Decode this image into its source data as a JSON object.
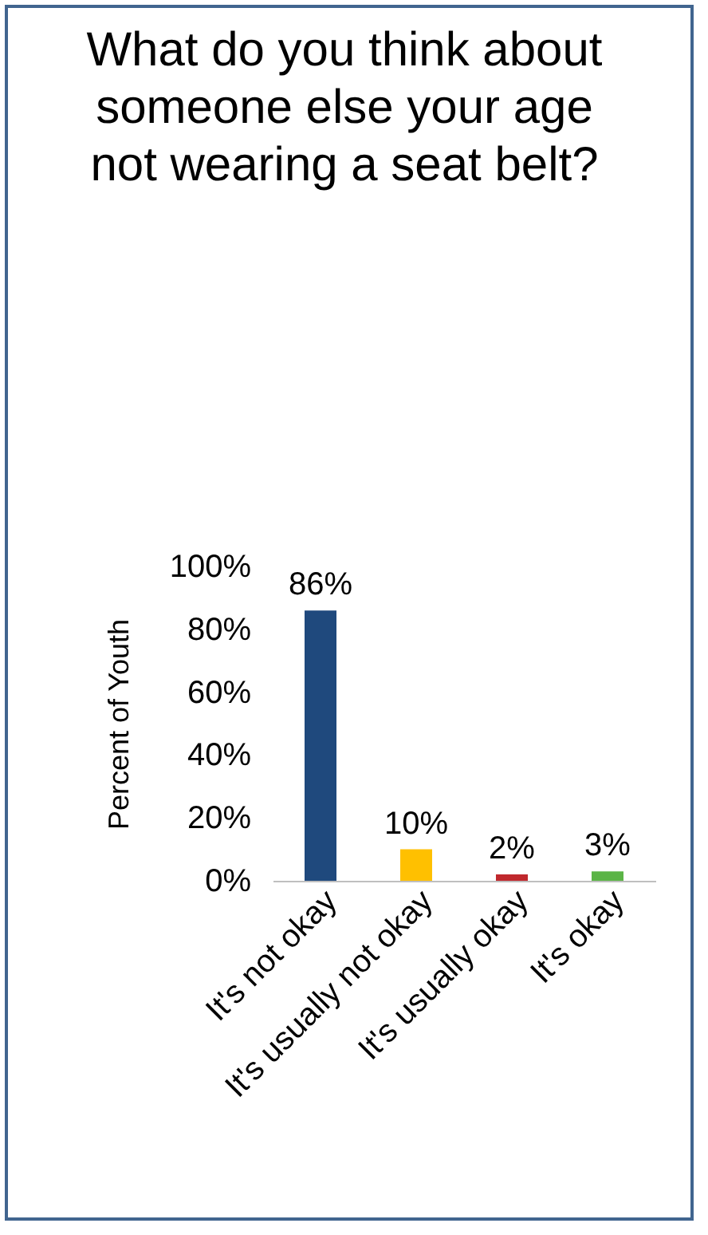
{
  "chart_data": {
    "type": "bar",
    "title": "What do you think about someone else your age not wearing a seat belt?",
    "ylabel": "Percent of Youth",
    "categories": [
      "It's not okay",
      "It's usually not okay",
      "It's usually okay",
      "It's okay"
    ],
    "values": [
      86,
      10,
      2,
      3
    ],
    "value_labels": [
      "86%",
      "10%",
      "2%",
      "3%"
    ],
    "colors": [
      "#1f497d",
      "#ffc000",
      "#c0282d",
      "#5bb446"
    ],
    "ylim": [
      0,
      100
    ],
    "yticks": [
      {
        "value": 0,
        "label": "0%"
      },
      {
        "value": 20,
        "label": "20%"
      },
      {
        "value": 40,
        "label": "40%"
      },
      {
        "value": 60,
        "label": "60%"
      },
      {
        "value": 80,
        "label": "80%"
      },
      {
        "value": 100,
        "label": "100%"
      }
    ],
    "grid": false
  }
}
